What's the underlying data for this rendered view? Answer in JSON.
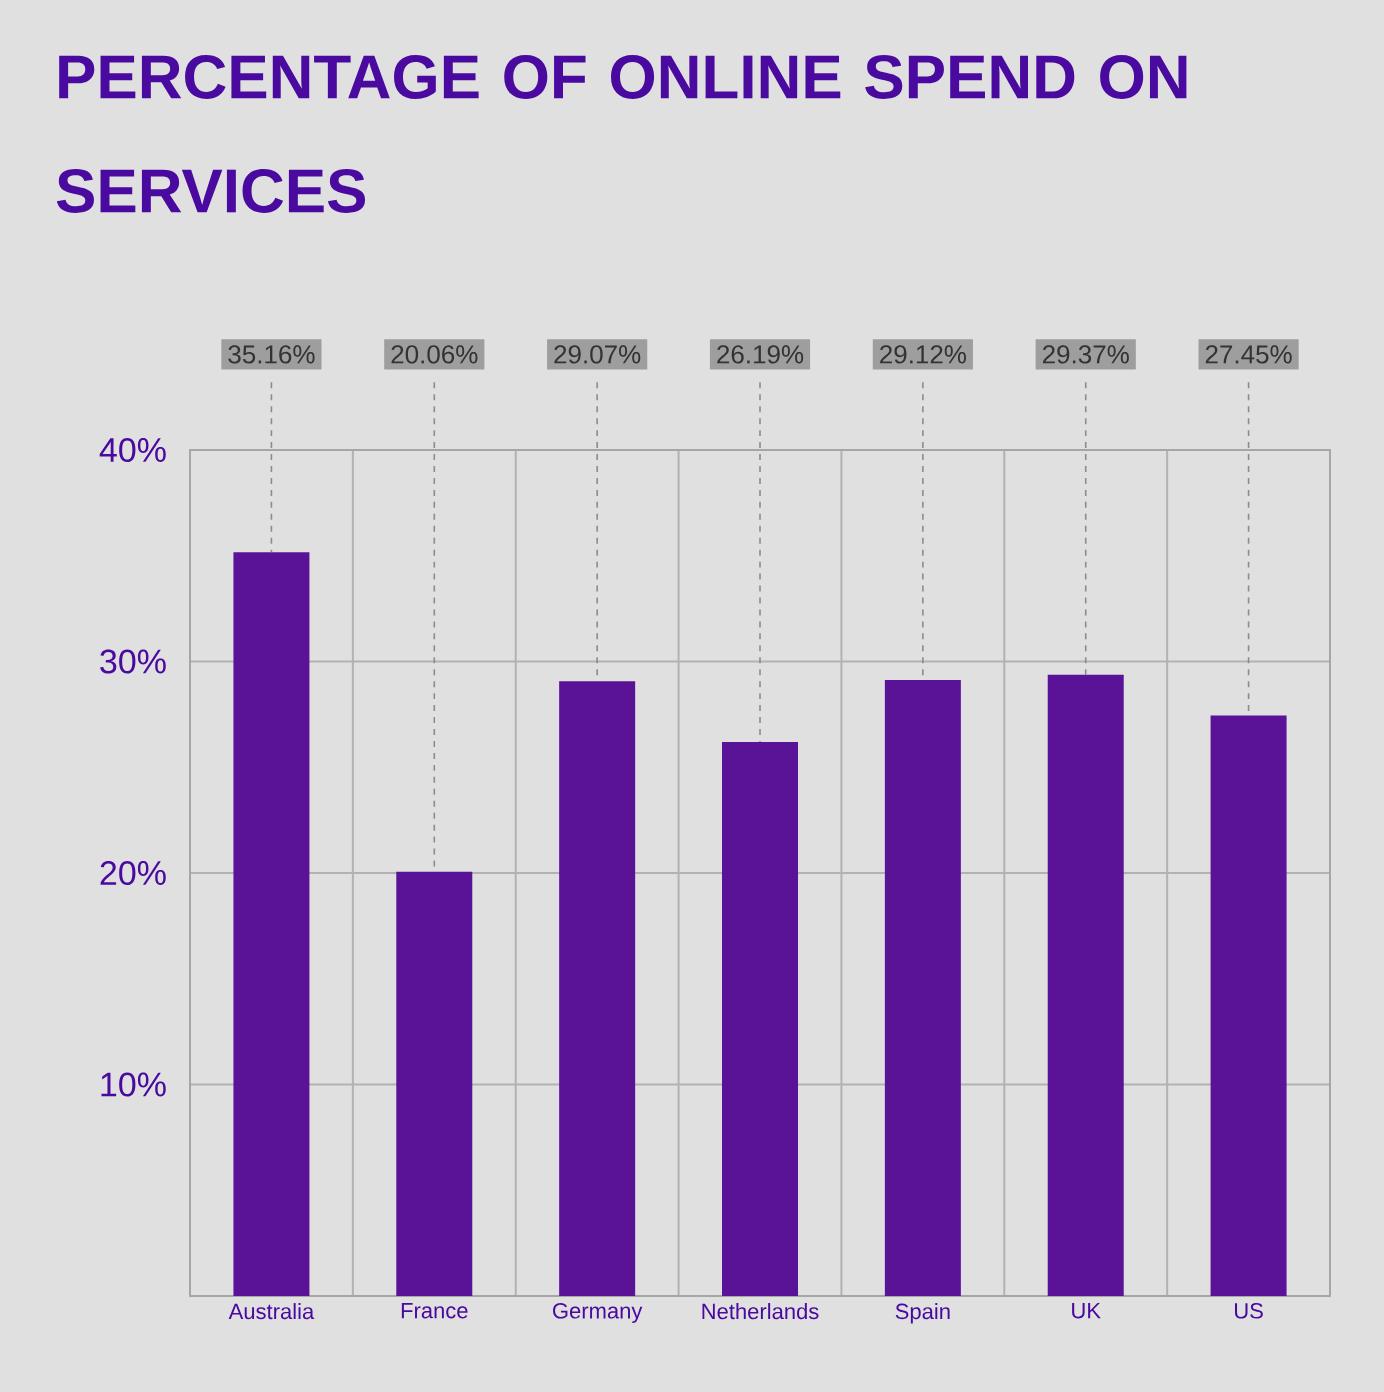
{
  "chart_data": {
    "type": "bar",
    "title": "PERCENTAGE OF ONLINE SPEND ON SERVICES",
    "categories": [
      "Australia",
      "France",
      "Germany",
      "Netherlands",
      "Spain",
      "UK",
      "US"
    ],
    "values": [
      35.16,
      20.06,
      29.07,
      26.19,
      29.12,
      29.37,
      27.45
    ],
    "value_labels": [
      "35.16%",
      "20.06%",
      "29.07%",
      "26.19%",
      "29.12%",
      "29.37%",
      "27.45%"
    ],
    "color": "#5a1396",
    "ylim": [
      0,
      40
    ],
    "yticks": [
      {
        "value": 0,
        "label": null
      },
      {
        "value": 10,
        "label": "10%"
      },
      {
        "value": 20,
        "label": "20%"
      },
      {
        "value": 30,
        "label": "30%"
      },
      {
        "value": 40,
        "label": "40%"
      }
    ],
    "grid": true
  }
}
